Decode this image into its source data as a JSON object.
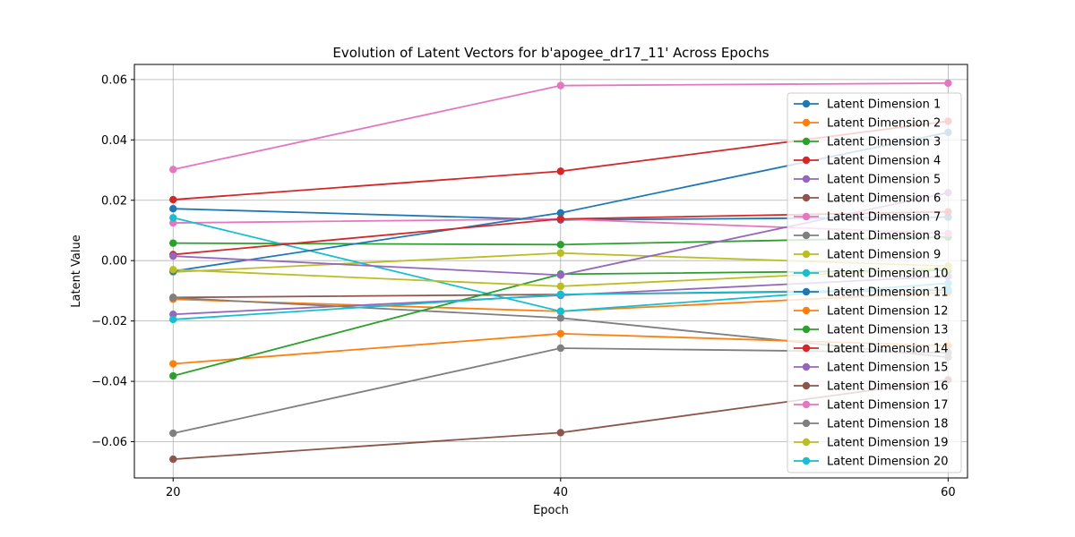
{
  "chart_data": {
    "type": "line",
    "title": "Evolution of Latent Vectors for b'apogee_dr17_11' Across Epochs",
    "xlabel": "Epoch",
    "ylabel": "Latent Value",
    "x": [
      20,
      40,
      60
    ],
    "xlim": [
      18,
      61
    ],
    "ylim": [
      -0.072,
      0.065
    ],
    "xticks": [
      20,
      40,
      60
    ],
    "yticks": [
      -0.06,
      -0.04,
      -0.02,
      0.0,
      0.02,
      0.04,
      0.06
    ],
    "ytick_labels": [
      "−0.06",
      "−0.04",
      "−0.02",
      "0.00",
      "0.02",
      "0.04",
      "0.06"
    ],
    "grid": true,
    "legend_position": "right",
    "series": [
      {
        "name": "Latent Dimension 1",
        "color": "#1f77b4",
        "values": [
          0.0172,
          0.0135,
          0.0144
        ]
      },
      {
        "name": "Latent Dimension 2",
        "color": "#ff7f0e",
        "values": [
          -0.0128,
          -0.0168,
          -0.0105
        ]
      },
      {
        "name": "Latent Dimension 3",
        "color": "#2ca02c",
        "values": [
          0.0058,
          0.0053,
          0.0078
        ]
      },
      {
        "name": "Latent Dimension 4",
        "color": "#d62728",
        "values": [
          0.0202,
          0.0296,
          0.0462
        ]
      },
      {
        "name": "Latent Dimension 5",
        "color": "#9467bd",
        "values": [
          -0.0178,
          -0.0115,
          -0.0052
        ]
      },
      {
        "name": "Latent Dimension 6",
        "color": "#8c564b",
        "values": [
          -0.0122,
          -0.0112,
          -0.0098
        ]
      },
      {
        "name": "Latent Dimension 7",
        "color": "#e377c2",
        "values": [
          0.0125,
          0.0138,
          0.009
        ]
      },
      {
        "name": "Latent Dimension 8",
        "color": "#7f7f7f",
        "values": [
          -0.0123,
          -0.019,
          -0.032
        ]
      },
      {
        "name": "Latent Dimension 9",
        "color": "#bcbd22",
        "values": [
          -0.0038,
          0.0025,
          -0.0018
        ]
      },
      {
        "name": "Latent Dimension 10",
        "color": "#17becf",
        "values": [
          0.0142,
          -0.0168,
          -0.0075
        ]
      },
      {
        "name": "Latent Dimension 11",
        "color": "#1f77b4",
        "values": [
          -0.0035,
          0.0158,
          0.0425
        ]
      },
      {
        "name": "Latent Dimension 12",
        "color": "#ff7f0e",
        "values": [
          -0.0342,
          -0.0242,
          -0.0282
        ]
      },
      {
        "name": "Latent Dimension 13",
        "color": "#2ca02c",
        "values": [
          -0.0382,
          -0.0045,
          -0.0032
        ]
      },
      {
        "name": "Latent Dimension 14",
        "color": "#d62728",
        "values": [
          0.002,
          0.0138,
          0.0162
        ]
      },
      {
        "name": "Latent Dimension 15",
        "color": "#9467bd",
        "values": [
          0.0015,
          -0.0048,
          0.0225
        ]
      },
      {
        "name": "Latent Dimension 16",
        "color": "#8c564b",
        "values": [
          -0.0658,
          -0.057,
          -0.0395
        ]
      },
      {
        "name": "Latent Dimension 17",
        "color": "#e377c2",
        "values": [
          0.0302,
          0.058,
          0.0588
        ]
      },
      {
        "name": "Latent Dimension 18",
        "color": "#7f7f7f",
        "values": [
          -0.0572,
          -0.029,
          -0.0305
        ]
      },
      {
        "name": "Latent Dimension 19",
        "color": "#bcbd22",
        "values": [
          -0.003,
          -0.0085,
          -0.0025
        ]
      },
      {
        "name": "Latent Dimension 20",
        "color": "#17becf",
        "values": [
          -0.0195,
          -0.0112,
          -0.0095
        ]
      }
    ]
  }
}
